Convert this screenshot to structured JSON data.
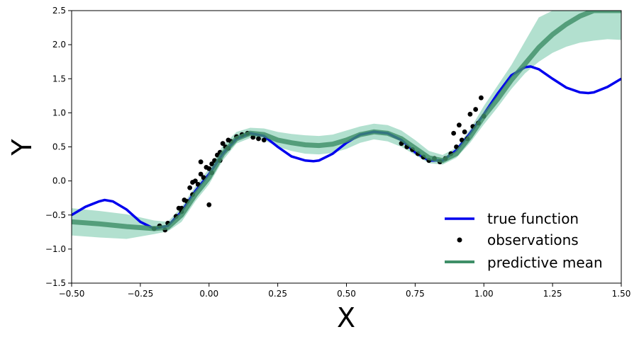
{
  "chart_data": {
    "type": "line",
    "title": "",
    "xlabel": "X",
    "ylabel": "Y",
    "xlim": [
      -0.5,
      1.5
    ],
    "ylim": [
      -1.5,
      2.5
    ],
    "x_ticks": [
      -0.5,
      -0.25,
      0.0,
      0.25,
      0.5,
      0.75,
      1.0,
      1.25,
      1.5
    ],
    "x_tick_labels": [
      "−0.50",
      "−0.25",
      "0.00",
      "0.25",
      "0.50",
      "0.75",
      "1.00",
      "1.25",
      "1.50"
    ],
    "y_ticks": [
      -1.5,
      -1.0,
      -0.5,
      0.0,
      0.5,
      1.0,
      1.5,
      2.0,
      2.5
    ],
    "y_tick_labels": [
      "−1.5",
      "−1.0",
      "−0.5",
      "0.0",
      "0.5",
      "1.0",
      "1.5",
      "2.0",
      "2.5"
    ],
    "grid": false,
    "legend_position": "bottom-right",
    "colors": {
      "true_function": "#0000ee",
      "observations": "#000000",
      "predictive_mean": "#3f8f68",
      "uncertainty_band": "#66c2a0"
    },
    "series": [
      {
        "name": "true function",
        "type": "line",
        "x": [
          -0.5,
          -0.45,
          -0.4,
          -0.38,
          -0.35,
          -0.3,
          -0.25,
          -0.2,
          -0.15,
          -0.1,
          -0.05,
          0.0,
          0.05,
          0.1,
          0.15,
          0.2,
          0.25,
          0.3,
          0.35,
          0.38,
          0.4,
          0.45,
          0.5,
          0.55,
          0.6,
          0.65,
          0.7,
          0.75,
          0.8,
          0.85,
          0.9,
          0.95,
          1.0,
          1.05,
          1.1,
          1.15,
          1.17,
          1.2,
          1.25,
          1.3,
          1.35,
          1.38,
          1.4,
          1.45,
          1.5
        ],
        "y": [
          -0.5,
          -0.38,
          -0.3,
          -0.28,
          -0.3,
          -0.42,
          -0.6,
          -0.7,
          -0.66,
          -0.45,
          -0.15,
          0.1,
          0.4,
          0.62,
          0.7,
          0.66,
          0.5,
          0.36,
          0.3,
          0.29,
          0.3,
          0.4,
          0.56,
          0.68,
          0.72,
          0.7,
          0.6,
          0.42,
          0.3,
          0.3,
          0.45,
          0.7,
          0.98,
          1.28,
          1.55,
          1.67,
          1.68,
          1.64,
          1.5,
          1.37,
          1.3,
          1.29,
          1.3,
          1.38,
          1.5
        ]
      },
      {
        "name": "observations",
        "type": "scatter",
        "x": [
          -0.2,
          -0.18,
          -0.16,
          -0.15,
          -0.12,
          -0.11,
          -0.1,
          -0.08,
          -0.07,
          -0.06,
          -0.05,
          -0.04,
          -0.03,
          -0.02,
          -0.01,
          0.0,
          0.01,
          0.02,
          0.03,
          0.04,
          0.05,
          0.06,
          0.07,
          0.08,
          0.1,
          0.12,
          0.14,
          0.16,
          0.18,
          0.2,
          -0.06,
          -0.03,
          0.01,
          0.04,
          0.07,
          0.0,
          -0.1,
          -0.09,
          0.7,
          0.72,
          0.74,
          0.76,
          0.78,
          0.8,
          0.82,
          0.84,
          0.86,
          0.88,
          0.9,
          0.92,
          0.94,
          0.96,
          0.98,
          1.0,
          0.89,
          0.91,
          0.93,
          0.95,
          0.97,
          0.99
        ],
        "y": [
          -0.7,
          -0.66,
          -0.72,
          -0.62,
          -0.52,
          -0.4,
          -0.45,
          -0.3,
          -0.1,
          -0.2,
          0.0,
          -0.05,
          0.1,
          0.05,
          0.2,
          0.18,
          0.25,
          0.3,
          0.38,
          0.42,
          0.55,
          0.5,
          0.6,
          0.58,
          0.65,
          0.68,
          0.7,
          0.64,
          0.62,
          0.6,
          -0.02,
          0.28,
          0.12,
          0.3,
          0.48,
          -0.35,
          -0.4,
          -0.28,
          0.55,
          0.5,
          0.46,
          0.4,
          0.35,
          0.3,
          0.33,
          0.28,
          0.33,
          0.4,
          0.5,
          0.6,
          0.62,
          0.8,
          0.85,
          0.95,
          0.7,
          0.82,
          0.72,
          0.98,
          1.05,
          1.22
        ]
      },
      {
        "name": "predictive mean",
        "type": "line",
        "x": [
          -0.5,
          -0.4,
          -0.3,
          -0.2,
          -0.15,
          -0.1,
          -0.05,
          0.0,
          0.05,
          0.1,
          0.15,
          0.2,
          0.25,
          0.3,
          0.35,
          0.4,
          0.45,
          0.5,
          0.55,
          0.6,
          0.65,
          0.7,
          0.75,
          0.8,
          0.85,
          0.9,
          0.95,
          1.0,
          1.05,
          1.1,
          1.15,
          1.2,
          1.25,
          1.3,
          1.35,
          1.4,
          1.45,
          1.5
        ],
        "y": [
          -0.6,
          -0.63,
          -0.67,
          -0.7,
          -0.68,
          -0.5,
          -0.2,
          0.05,
          0.4,
          0.62,
          0.7,
          0.68,
          0.6,
          0.56,
          0.53,
          0.52,
          0.54,
          0.6,
          0.68,
          0.72,
          0.7,
          0.62,
          0.48,
          0.34,
          0.3,
          0.4,
          0.65,
          0.95,
          1.2,
          1.48,
          1.72,
          1.96,
          2.15,
          2.3,
          2.42,
          2.5,
          2.5,
          2.5
        ]
      },
      {
        "name": "predictive band",
        "type": "area",
        "x": [
          -0.5,
          -0.4,
          -0.3,
          -0.2,
          -0.15,
          -0.1,
          -0.05,
          0.0,
          0.05,
          0.1,
          0.15,
          0.2,
          0.25,
          0.3,
          0.35,
          0.4,
          0.45,
          0.5,
          0.55,
          0.6,
          0.65,
          0.7,
          0.75,
          0.8,
          0.85,
          0.9,
          0.95,
          1.0,
          1.05,
          1.1,
          1.15,
          1.2,
          1.25,
          1.3,
          1.35,
          1.4,
          1.45,
          1.5
        ],
        "lower": [
          -0.8,
          -0.83,
          -0.85,
          -0.78,
          -0.74,
          -0.6,
          -0.3,
          -0.05,
          0.3,
          0.55,
          0.63,
          0.6,
          0.5,
          0.44,
          0.4,
          0.39,
          0.41,
          0.47,
          0.56,
          0.61,
          0.58,
          0.5,
          0.38,
          0.26,
          0.24,
          0.34,
          0.56,
          0.83,
          1.08,
          1.35,
          1.58,
          1.75,
          1.88,
          1.97,
          2.03,
          2.06,
          2.08,
          2.07
        ],
        "upper": [
          -0.4,
          -0.44,
          -0.49,
          -0.58,
          -0.6,
          -0.38,
          -0.08,
          0.18,
          0.52,
          0.72,
          0.78,
          0.77,
          0.72,
          0.69,
          0.67,
          0.66,
          0.68,
          0.74,
          0.8,
          0.84,
          0.82,
          0.74,
          0.6,
          0.44,
          0.38,
          0.49,
          0.76,
          1.1,
          1.4,
          1.7,
          2.05,
          2.4,
          2.5,
          2.5,
          2.5,
          2.5,
          2.5,
          2.5
        ]
      }
    ],
    "legend": [
      {
        "label": "true function",
        "kind": "line",
        "color": "#0000ee"
      },
      {
        "label": "observations",
        "kind": "marker",
        "color": "#000000"
      },
      {
        "label": "predictive mean",
        "kind": "line",
        "color": "#3f8f68"
      }
    ]
  }
}
